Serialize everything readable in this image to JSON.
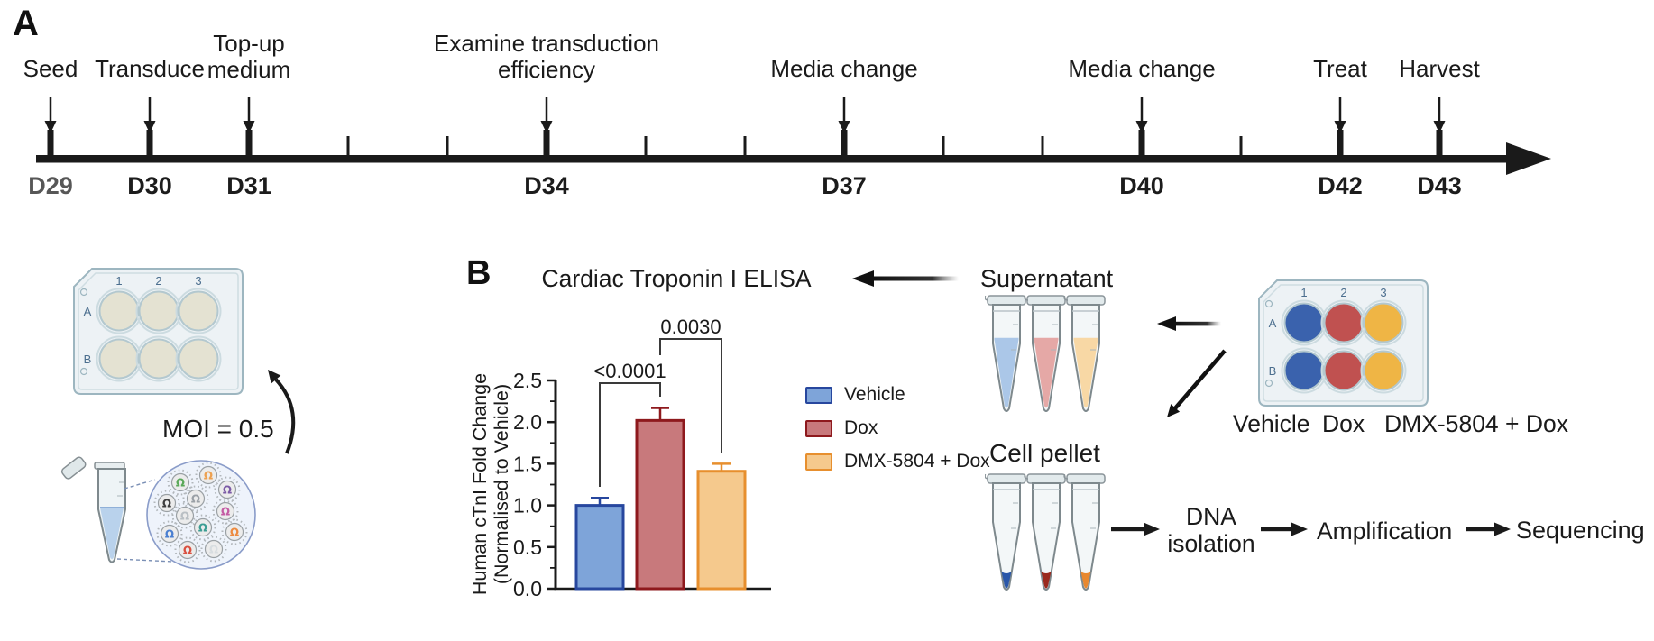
{
  "panel_a": {
    "label": "A",
    "timeline": {
      "start_day": 29,
      "end_day": 43,
      "events": [
        {
          "day": 29,
          "day_label": "D29",
          "label": "Seed"
        },
        {
          "day": 30,
          "day_label": "D30",
          "label": "Transduce"
        },
        {
          "day": 31,
          "day_label": "D31",
          "label": "Top-up\nmedium"
        },
        {
          "day": 34,
          "day_label": "D34",
          "label": "Examine transduction\nefficiency"
        },
        {
          "day": 37,
          "day_label": "D37",
          "label": "Media change"
        },
        {
          "day": 40,
          "day_label": "D40",
          "label": "Media change"
        },
        {
          "day": 42,
          "day_label": "D42",
          "label": "Treat"
        },
        {
          "day": 43,
          "day_label": "D43",
          "label": "Harvest"
        }
      ]
    },
    "plate": {
      "column_labels": [
        "1",
        "2",
        "3"
      ],
      "row_labels": [
        "A",
        "B"
      ],
      "well_color": "#e4e2d2"
    },
    "moi_label": "MOI = 0.5"
  },
  "panel_b": {
    "label": "B"
  },
  "chart_data": {
    "type": "bar",
    "title": "Cardiac Troponin I ELISA",
    "categories": [
      "Vehicle",
      "Dox",
      "DMX-5804 + Dox"
    ],
    "values": [
      1.0,
      2.02,
      1.41
    ],
    "error_sd": [
      0.09,
      0.15,
      0.09
    ],
    "ylabel": "Human cTnI Fold Change\n(Normalised to Vehicle)",
    "ylim": [
      0,
      2.5
    ],
    "yticks": [
      "0.0",
      "0.5",
      "1.0",
      "1.5",
      "2.0",
      "2.5"
    ],
    "bar_fill_colors": [
      "#7ea4d9",
      "#c8797c",
      "#f5c98d"
    ],
    "bar_border_colors": [
      "#27479e",
      "#8e191d",
      "#e78f2e"
    ],
    "significance": [
      {
        "between": [
          "Vehicle",
          "Dox"
        ],
        "p_label": "<0.0001"
      },
      {
        "between": [
          "Dox",
          "DMX-5804 + Dox"
        ],
        "p_label": "0.0030"
      }
    ],
    "legend": [
      {
        "label": "Vehicle"
      },
      {
        "label": "Dox"
      },
      {
        "label": "DMX-5804 + Dox"
      }
    ],
    "legend_position": "right",
    "grid": false
  },
  "workflow": {
    "supernatant_label": "Supernatant",
    "cell_pellet_label": "Cell pellet",
    "plate": {
      "column_labels": [
        "1",
        "2",
        "3"
      ],
      "row_labels": [
        "A",
        "B"
      ],
      "well_colors": [
        "#3a62ad",
        "#c05150",
        "#efb545"
      ]
    },
    "condition_labels": [
      "Vehicle",
      "Dox",
      "DMX-5804 + Dox"
    ],
    "supernatant_colors": [
      "#abc7e8",
      "#e5a8a6",
      "#f8d8a5"
    ],
    "pellet_colors": [
      "#2a57a9",
      "#9b2a1e",
      "#e8882f"
    ],
    "steps": [
      "DNA\nisolation",
      "Amplification",
      "Sequencing"
    ]
  }
}
